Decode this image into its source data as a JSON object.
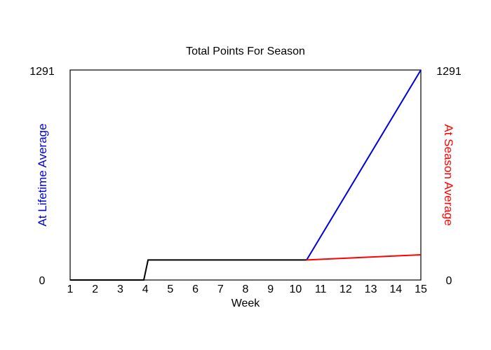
{
  "chart_data": {
    "type": "line",
    "title": "Total Points For Season",
    "xlabel": "Week",
    "ylabel_left": "At Lifetime Average",
    "ylabel_right": "At Season Average",
    "xlim": [
      1,
      15
    ],
    "ylim": [
      0,
      1291
    ],
    "x_ticks": [
      1,
      2,
      3,
      4,
      5,
      6,
      7,
      8,
      9,
      10,
      11,
      12,
      13,
      14,
      15
    ],
    "y_tick_labels_left": [
      "0",
      "1291"
    ],
    "y_tick_labels_right": [
      "0",
      "1291"
    ],
    "grid": false,
    "series": [
      {
        "color": "#000000",
        "points": [
          [
            1,
            0
          ],
          [
            3.94,
            0
          ],
          [
            4.11,
            123
          ],
          [
            10.44,
            123
          ]
        ]
      },
      {
        "color": "#0000dd",
        "points": [
          [
            10.44,
            123
          ],
          [
            15,
            1291
          ]
        ]
      },
      {
        "color": "#ff0000",
        "points": [
          [
            10.44,
            123
          ],
          [
            15,
            155
          ]
        ]
      }
    ],
    "colors": {
      "left_axis_label": "#0000dd",
      "right_axis_label": "#ff0000"
    }
  }
}
